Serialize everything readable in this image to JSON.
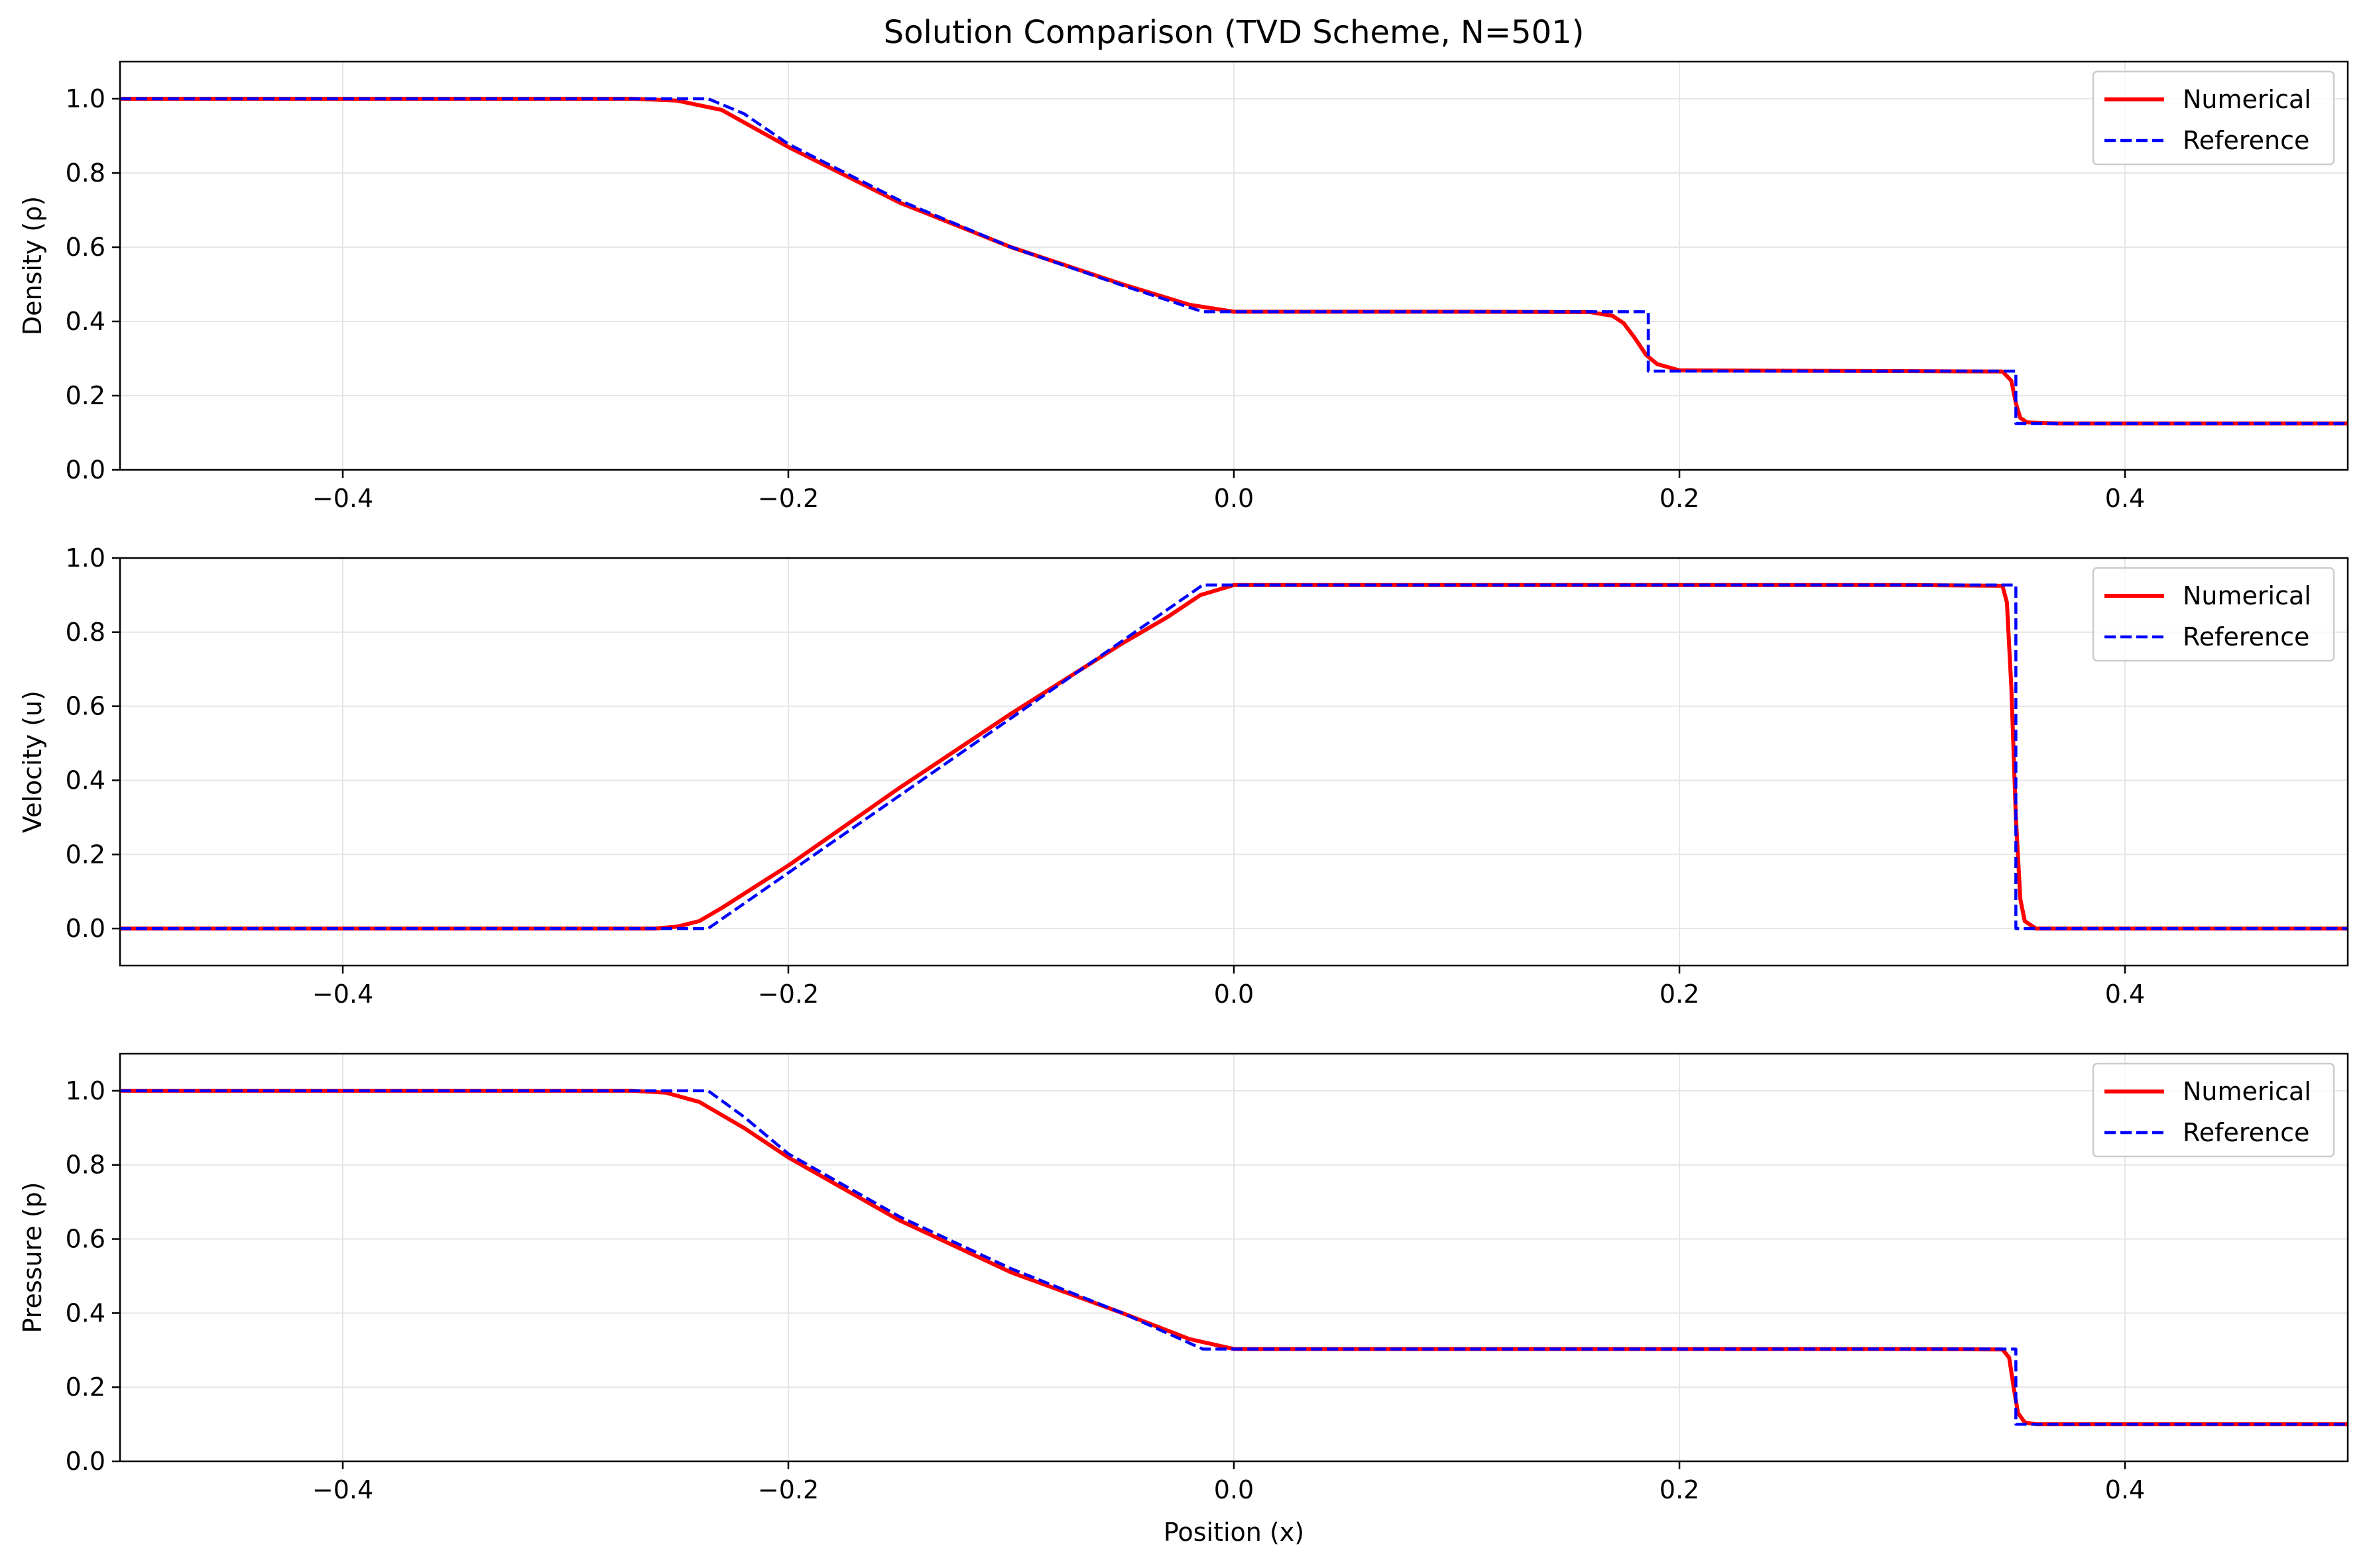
{
  "figure": {
    "title": "Solution Comparison (TVD Scheme, N=501)",
    "xlabel": "Position (x)"
  },
  "colors": {
    "numerical": "#ff0000",
    "reference": "#0000ff",
    "grid": "#e6e6e6",
    "axes": "#000000"
  },
  "legend": {
    "placement": "top-right",
    "entries": [
      "Numerical",
      "Reference"
    ]
  },
  "chart_data": [
    {
      "type": "line",
      "ylabel": "Density (ρ)",
      "xlim": [
        -0.5,
        0.5
      ],
      "ylim": [
        0,
        1.1
      ],
      "xticks": [
        -0.4,
        -0.2,
        0.0,
        0.2,
        0.4
      ],
      "xtick_labels": [
        "−0.4",
        "−0.2",
        "0.0",
        "0.2",
        "0.4"
      ],
      "yticks": [
        0.0,
        0.2,
        0.4,
        0.6,
        0.8,
        1.0
      ],
      "ytick_labels": [
        "0.0",
        "0.2",
        "0.4",
        "0.6",
        "0.8",
        "1.0"
      ],
      "grid": true,
      "series": [
        {
          "name": "Numerical",
          "style": "solid",
          "x": [
            -0.5,
            -0.3,
            -0.27,
            -0.25,
            -0.23,
            -0.2,
            -0.15,
            -0.1,
            -0.05,
            -0.02,
            0.0,
            0.1,
            0.16,
            0.17,
            0.175,
            0.18,
            0.185,
            0.19,
            0.2,
            0.3,
            0.345,
            0.349,
            0.351,
            0.353,
            0.356,
            0.37,
            0.5
          ],
          "y": [
            1.0,
            1.0,
            1.0,
            0.995,
            0.97,
            0.87,
            0.72,
            0.6,
            0.5,
            0.445,
            0.426,
            0.426,
            0.425,
            0.415,
            0.395,
            0.355,
            0.31,
            0.285,
            0.268,
            0.266,
            0.265,
            0.24,
            0.18,
            0.14,
            0.128,
            0.125,
            0.125
          ]
        },
        {
          "name": "Reference",
          "style": "dashed",
          "x": [
            -0.5,
            -0.236,
            -0.22,
            -0.2,
            -0.15,
            -0.1,
            -0.05,
            -0.014,
            0.0,
            0.186,
            0.186,
            0.351,
            0.351,
            0.5
          ],
          "y": [
            1.0,
            1.0,
            0.96,
            0.878,
            0.726,
            0.6,
            0.497,
            0.426,
            0.426,
            0.426,
            0.266,
            0.266,
            0.125,
            0.125
          ]
        }
      ]
    },
    {
      "type": "line",
      "ylabel": "Velocity (u)",
      "xlim": [
        -0.5,
        0.5
      ],
      "ylim": [
        -0.1,
        1.0
      ],
      "xticks": [
        -0.4,
        -0.2,
        0.0,
        0.2,
        0.4
      ],
      "xtick_labels": [
        "−0.4",
        "−0.2",
        "0.0",
        "0.2",
        "0.4"
      ],
      "yticks": [
        0.0,
        0.2,
        0.4,
        0.6,
        0.8,
        1.0
      ],
      "ytick_labels": [
        "0.0",
        "0.2",
        "0.4",
        "0.6",
        "0.8",
        "1.0"
      ],
      "grid": true,
      "series": [
        {
          "name": "Numerical",
          "style": "solid",
          "x": [
            -0.5,
            -0.26,
            -0.25,
            -0.24,
            -0.23,
            -0.2,
            -0.15,
            -0.1,
            -0.05,
            -0.03,
            -0.015,
            0.0,
            0.1,
            0.2,
            0.3,
            0.345,
            0.347,
            0.349,
            0.351,
            0.353,
            0.355,
            0.36,
            0.5
          ],
          "y": [
            0.0,
            0.0,
            0.005,
            0.02,
            0.055,
            0.17,
            0.38,
            0.58,
            0.77,
            0.84,
            0.9,
            0.927,
            0.927,
            0.927,
            0.927,
            0.925,
            0.88,
            0.65,
            0.3,
            0.08,
            0.02,
            0.0,
            0.0
          ]
        },
        {
          "name": "Reference",
          "style": "dashed",
          "x": [
            -0.5,
            -0.236,
            -0.236,
            -0.014,
            -0.014,
            0.351,
            0.351,
            0.5
          ],
          "y": [
            0.0,
            0.0,
            0.0,
            0.927,
            0.927,
            0.927,
            0.0,
            0.0
          ]
        }
      ]
    },
    {
      "type": "line",
      "ylabel": "Pressure (p)",
      "xlim": [
        -0.5,
        0.5
      ],
      "ylim": [
        0,
        1.1
      ],
      "xticks": [
        -0.4,
        -0.2,
        0.0,
        0.2,
        0.4
      ],
      "xtick_labels": [
        "−0.4",
        "−0.2",
        "0.0",
        "0.2",
        "0.4"
      ],
      "yticks": [
        0.0,
        0.2,
        0.4,
        0.6,
        0.8,
        1.0
      ],
      "ytick_labels": [
        "0.0",
        "0.2",
        "0.4",
        "0.6",
        "0.8",
        "1.0"
      ],
      "grid": true,
      "series": [
        {
          "name": "Numerical",
          "style": "solid",
          "x": [
            -0.5,
            -0.27,
            -0.255,
            -0.24,
            -0.22,
            -0.2,
            -0.15,
            -0.1,
            -0.05,
            -0.02,
            0.0,
            0.1,
            0.2,
            0.3,
            0.345,
            0.348,
            0.35,
            0.352,
            0.355,
            0.36,
            0.5
          ],
          "y": [
            1.0,
            1.0,
            0.995,
            0.97,
            0.9,
            0.82,
            0.65,
            0.51,
            0.4,
            0.33,
            0.303,
            0.303,
            0.303,
            0.303,
            0.302,
            0.28,
            0.2,
            0.13,
            0.105,
            0.1,
            0.1
          ]
        },
        {
          "name": "Reference",
          "style": "dashed",
          "x": [
            -0.5,
            -0.236,
            -0.22,
            -0.2,
            -0.15,
            -0.1,
            -0.05,
            -0.014,
            0.0,
            0.351,
            0.351,
            0.5
          ],
          "y": [
            1.0,
            1.0,
            0.93,
            0.83,
            0.66,
            0.52,
            0.4,
            0.303,
            0.303,
            0.303,
            0.1,
            0.1
          ]
        }
      ]
    }
  ]
}
